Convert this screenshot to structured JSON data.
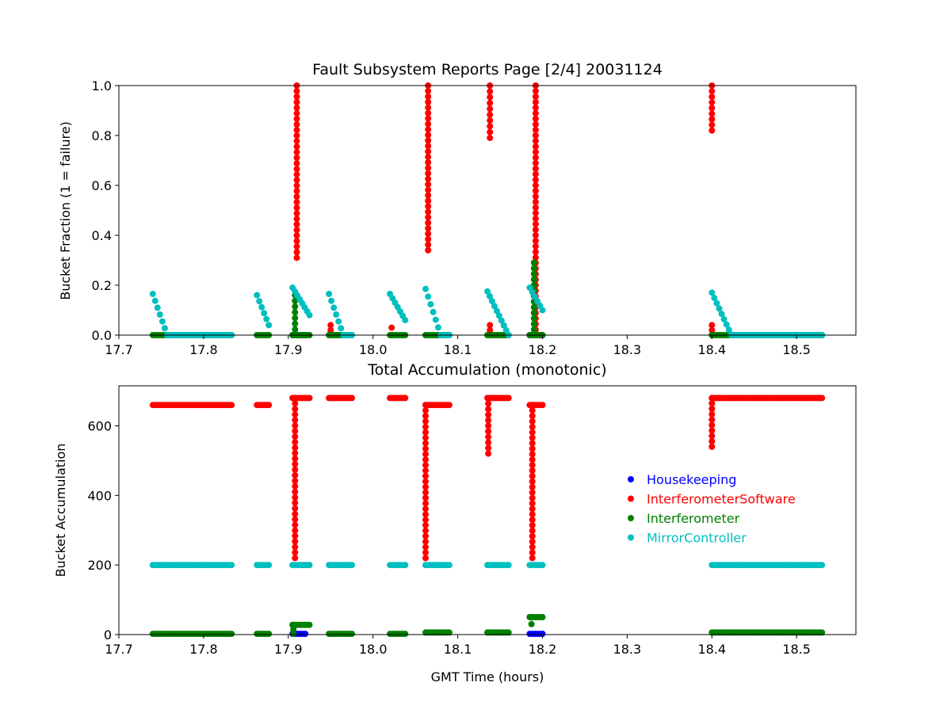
{
  "chart_data": [
    {
      "type": "scatter",
      "title": "Fault Subsystem Reports Page [2/4] 20031124",
      "xlabel": "",
      "ylabel": "Bucket Fraction (1 = failure)",
      "xlim": [
        17.7,
        18.57
      ],
      "ylim": [
        0,
        1.0
      ],
      "xticks": [
        "17.7",
        "17.8",
        "17.9",
        "18.0",
        "18.1",
        "18.2",
        "18.3",
        "18.4",
        "18.5"
      ],
      "yticks": [
        "0.0",
        "0.2",
        "0.4",
        "0.6",
        "0.8",
        "1.0"
      ],
      "grid": false,
      "series": [
        {
          "name": "Housekeeping",
          "color": "#0000ff",
          "segments": [
            {
              "x0": 17.905,
              "x1": 17.92,
              "y0": 0,
              "y1": 0
            },
            {
              "x0": 18.185,
              "x1": 18.2,
              "y0": 0,
              "y1": 0
            }
          ],
          "vlines": []
        },
        {
          "name": "InterferometerSoftware",
          "color": "#ff0000",
          "segments": [],
          "vlines": [
            {
              "x": 17.91,
              "ymin": 0.31,
              "ymax": 1.0
            },
            {
              "x": 18.065,
              "ymin": 0.34,
              "ymax": 1.0
            },
            {
              "x": 18.138,
              "ymin": 0.79,
              "ymax": 1.0
            },
            {
              "x": 18.192,
              "ymin": 0.0,
              "ymax": 1.0
            },
            {
              "x": 18.4,
              "ymin": 0.82,
              "ymax": 1.0
            },
            {
              "x": 17.95,
              "ymin": 0.0,
              "ymax": 0.04
            },
            {
              "x": 18.022,
              "ymin": 0.0,
              "ymax": 0.03
            },
            {
              "x": 18.138,
              "ymin": 0.0,
              "ymax": 0.04
            },
            {
              "x": 18.4,
              "ymin": 0.0,
              "ymax": 0.04
            }
          ]
        },
        {
          "name": "Interferometer",
          "color": "#008000",
          "segments": [
            {
              "x0": 17.74,
              "x1": 17.833,
              "y0": 0,
              "y1": 0
            },
            {
              "x0": 17.863,
              "x1": 17.877,
              "y0": 0,
              "y1": 0
            },
            {
              "x0": 17.905,
              "x1": 17.925,
              "y0": 0,
              "y1": 0
            },
            {
              "x0": 17.948,
              "x1": 17.975,
              "y0": 0,
              "y1": 0
            },
            {
              "x0": 18.02,
              "x1": 18.038,
              "y0": 0,
              "y1": 0
            },
            {
              "x0": 18.062,
              "x1": 18.09,
              "y0": 0,
              "y1": 0
            },
            {
              "x0": 18.135,
              "x1": 18.16,
              "y0": 0,
              "y1": 0
            },
            {
              "x0": 18.185,
              "x1": 18.2,
              "y0": 0,
              "y1": 0
            },
            {
              "x0": 18.4,
              "x1": 18.53,
              "y0": 0,
              "y1": 0
            }
          ],
          "vlines": [
            {
              "x": 17.908,
              "ymin": 0.0,
              "ymax": 0.16
            },
            {
              "x": 18.19,
              "ymin": 0.0,
              "ymax": 0.29
            }
          ]
        },
        {
          "name": "MirrorController",
          "color": "#00bfbf",
          "segments": [
            {
              "x0": 17.74,
              "x1": 17.757,
              "y0": 0.165,
              "y1": 0
            },
            {
              "x0": 17.757,
              "x1": 17.833,
              "y0": 0,
              "y1": 0
            },
            {
              "x0": 17.863,
              "x1": 17.877,
              "y0": 0.16,
              "y1": 0.04
            },
            {
              "x0": 17.905,
              "x1": 17.925,
              "y0": 0.19,
              "y1": 0.08
            },
            {
              "x0": 17.948,
              "x1": 17.965,
              "y0": 0.165,
              "y1": 0
            },
            {
              "x0": 17.965,
              "x1": 17.975,
              "y0": 0,
              "y1": 0
            },
            {
              "x0": 18.02,
              "x1": 18.038,
              "y0": 0.165,
              "y1": 0.06
            },
            {
              "x0": 18.062,
              "x1": 18.08,
              "y0": 0.185,
              "y1": 0
            },
            {
              "x0": 18.08,
              "x1": 18.09,
              "y0": 0,
              "y1": 0
            },
            {
              "x0": 18.135,
              "x1": 18.16,
              "y0": 0.175,
              "y1": 0
            },
            {
              "x0": 18.185,
              "x1": 18.2,
              "y0": 0.19,
              "y1": 0.1
            },
            {
              "x0": 18.4,
              "x1": 18.423,
              "y0": 0.17,
              "y1": 0
            },
            {
              "x0": 18.423,
              "x1": 18.53,
              "y0": 0,
              "y1": 0
            }
          ],
          "vlines": []
        }
      ]
    },
    {
      "type": "scatter",
      "title": "Total Accumulation (monotonic)",
      "xlabel": "GMT Time (hours)",
      "ylabel": "Bucket Accumulation",
      "xlim": [
        17.7,
        18.57
      ],
      "ylim": [
        0,
        715
      ],
      "xticks": [
        "17.7",
        "17.8",
        "17.9",
        "18.0",
        "18.1",
        "18.2",
        "18.3",
        "18.4",
        "18.5"
      ],
      "yticks": [
        "0",
        "200",
        "400",
        "600"
      ],
      "grid": false,
      "legend": {
        "position": "center-right",
        "entries": [
          "Housekeeping",
          "InterferometerSoftware",
          "Interferometer",
          "MirrorController"
        ]
      },
      "series": [
        {
          "name": "Housekeeping",
          "color": "#0000ff",
          "segments": [
            {
              "x0": 17.905,
              "x1": 17.92,
              "y0": 2,
              "y1": 2
            },
            {
              "x0": 18.185,
              "x1": 18.2,
              "y0": 2,
              "y1": 2
            }
          ],
          "vlines": []
        },
        {
          "name": "InterferometerSoftware",
          "color": "#ff0000",
          "segments": [
            {
              "x0": 17.74,
              "x1": 17.833,
              "y0": 660,
              "y1": 660
            },
            {
              "x0": 17.863,
              "x1": 17.877,
              "y0": 660,
              "y1": 660
            },
            {
              "x0": 17.905,
              "x1": 17.925,
              "y0": 680,
              "y1": 680
            },
            {
              "x0": 17.948,
              "x1": 17.975,
              "y0": 680,
              "y1": 680
            },
            {
              "x0": 18.02,
              "x1": 18.038,
              "y0": 680,
              "y1": 680
            },
            {
              "x0": 18.062,
              "x1": 18.09,
              "y0": 660,
              "y1": 660
            },
            {
              "x0": 18.135,
              "x1": 18.16,
              "y0": 680,
              "y1": 680
            },
            {
              "x0": 18.185,
              "x1": 18.2,
              "y0": 660,
              "y1": 660
            },
            {
              "x0": 18.4,
              "x1": 18.53,
              "y0": 680,
              "y1": 680
            }
          ],
          "vlines": [
            {
              "x": 17.908,
              "ymin": 220,
              "ymax": 680
            },
            {
              "x": 18.062,
              "ymin": 220,
              "ymax": 660
            },
            {
              "x": 18.136,
              "ymin": 520,
              "ymax": 680
            },
            {
              "x": 18.188,
              "ymin": 220,
              "ymax": 660
            },
            {
              "x": 18.4,
              "ymin": 540,
              "ymax": 680
            }
          ]
        },
        {
          "name": "Interferometer",
          "color": "#008000",
          "segments": [
            {
              "x0": 17.74,
              "x1": 17.833,
              "y0": 2,
              "y1": 2
            },
            {
              "x0": 17.863,
              "x1": 17.877,
              "y0": 2,
              "y1": 2
            },
            {
              "x0": 17.905,
              "x1": 17.925,
              "y0": 28,
              "y1": 28
            },
            {
              "x0": 17.948,
              "x1": 17.975,
              "y0": 2,
              "y1": 2
            },
            {
              "x0": 18.02,
              "x1": 18.038,
              "y0": 2,
              "y1": 2
            },
            {
              "x0": 18.062,
              "x1": 18.09,
              "y0": 6,
              "y1": 6
            },
            {
              "x0": 18.135,
              "x1": 18.16,
              "y0": 6,
              "y1": 6
            },
            {
              "x0": 18.185,
              "x1": 18.2,
              "y0": 50,
              "y1": 50
            },
            {
              "x0": 18.4,
              "x1": 18.53,
              "y0": 6,
              "y1": 6
            }
          ],
          "vlines": [
            {
              "x": 17.906,
              "ymin": 2,
              "ymax": 28
            },
            {
              "x": 18.187,
              "ymin": 30,
              "ymax": 50
            }
          ]
        },
        {
          "name": "MirrorController",
          "color": "#00bfbf",
          "segments": [
            {
              "x0": 17.74,
              "x1": 17.833,
              "y0": 200,
              "y1": 200
            },
            {
              "x0": 17.863,
              "x1": 17.877,
              "y0": 200,
              "y1": 200
            },
            {
              "x0": 17.905,
              "x1": 17.925,
              "y0": 200,
              "y1": 200
            },
            {
              "x0": 17.948,
              "x1": 17.975,
              "y0": 200,
              "y1": 200
            },
            {
              "x0": 18.02,
              "x1": 18.038,
              "y0": 200,
              "y1": 200
            },
            {
              "x0": 18.062,
              "x1": 18.09,
              "y0": 200,
              "y1": 200
            },
            {
              "x0": 18.135,
              "x1": 18.16,
              "y0": 200,
              "y1": 200
            },
            {
              "x0": 18.185,
              "x1": 18.2,
              "y0": 200,
              "y1": 200
            },
            {
              "x0": 18.4,
              "x1": 18.53,
              "y0": 200,
              "y1": 200
            }
          ],
          "vlines": []
        }
      ]
    }
  ]
}
